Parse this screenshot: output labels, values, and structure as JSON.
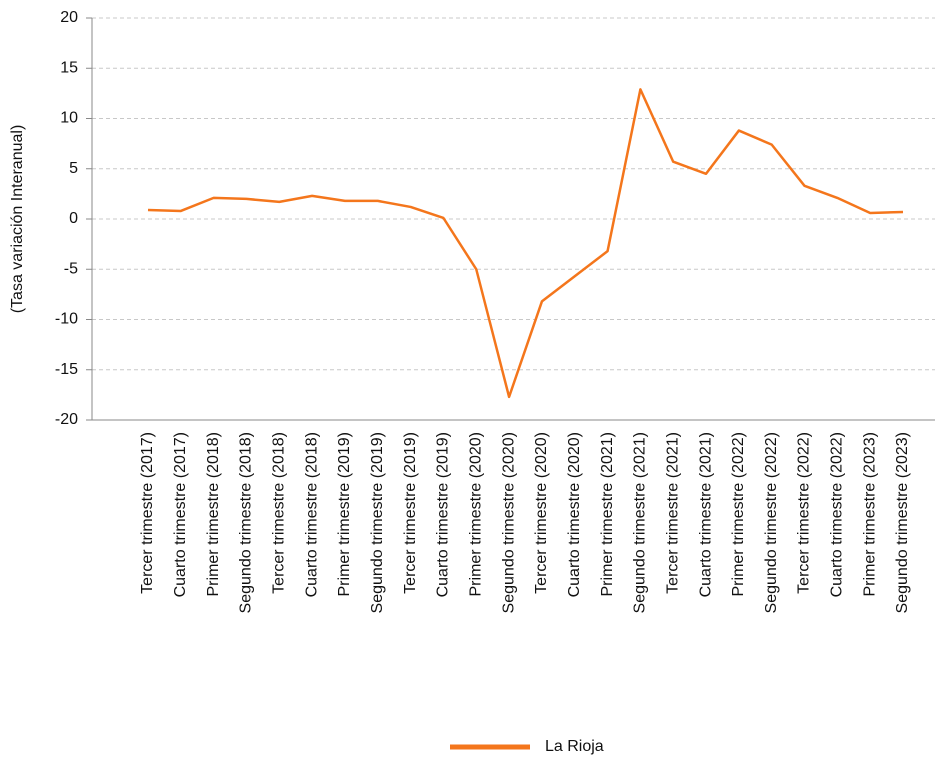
{
  "chart_data": {
    "type": "line",
    "y_label": "(Tasa variación Interanual)",
    "categories": [
      "Tercer trimestre (2017)",
      "Cuarto trimestre (2017)",
      "Primer trimestre (2018)",
      "Segundo trimestre (2018)",
      "Tercer trimestre (2018)",
      "Cuarto trimestre (2018)",
      "Primer trimestre (2019)",
      "Segundo trimestre (2019)",
      "Tercer trimestre (2019)",
      "Cuarto trimestre (2019)",
      "Primer trimestre (2020)",
      "Segundo trimestre (2020)",
      "Tercer trimestre (2020)",
      "Cuarto trimestre (2020)",
      "Primer trimestre (2021)",
      "Segundo trimestre (2021)",
      "Tercer trimestre (2021)",
      "Cuarto trimestre (2021)",
      "Primer trimestre (2022)",
      "Segundo trimestre (2022)",
      "Tercer trimestre (2022)",
      "Cuarto trimestre (2022)",
      "Primer trimestre (2023)",
      "Segundo trimestre (2023)"
    ],
    "series": [
      {
        "name": "La Rioja",
        "color": "#f4761c",
        "values": [
          0.9,
          0.8,
          2.1,
          2.0,
          1.7,
          2.3,
          1.8,
          1.8,
          1.2,
          0.1,
          -5.0,
          -17.7,
          -8.2,
          -5.7,
          -3.2,
          12.9,
          5.7,
          4.5,
          8.8,
          7.4,
          3.3,
          2.1,
          0.6,
          0.7
        ]
      }
    ],
    "ylim": [
      -20,
      20
    ],
    "yticks": [
      -20,
      -15,
      -10,
      -5,
      0,
      5,
      10,
      15,
      20
    ],
    "grid": true,
    "legend": "bottom"
  }
}
